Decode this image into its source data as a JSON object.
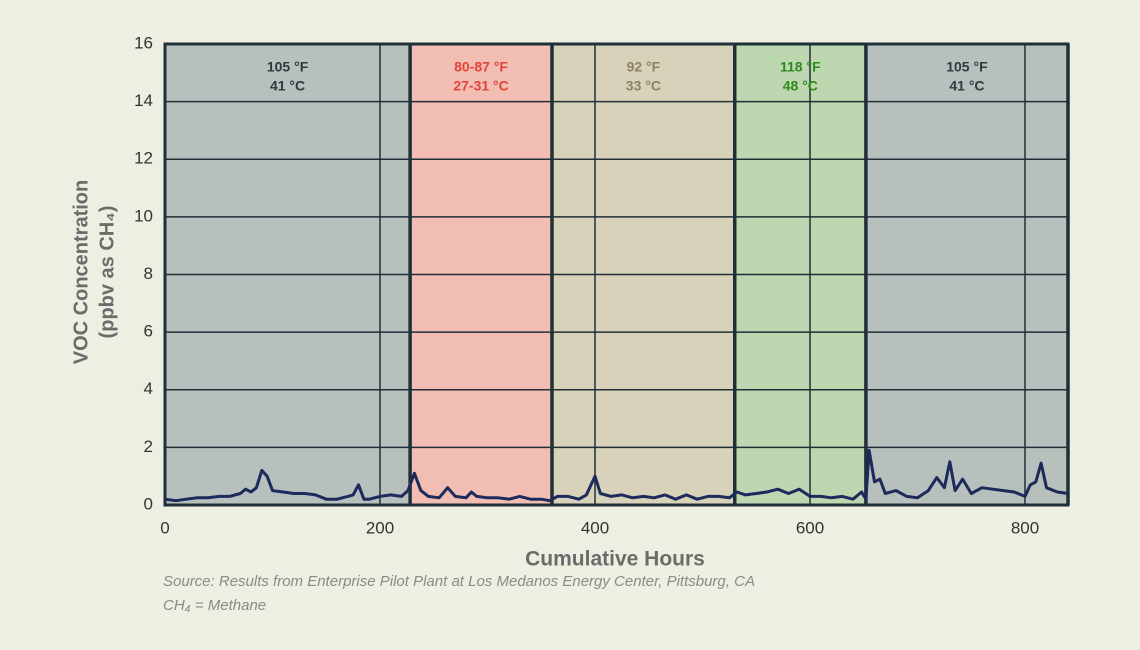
{
  "chart_data": {
    "type": "line",
    "ylabel": [
      "VOC Concentration",
      "(ppbv as CH₄)"
    ],
    "xlabel": "Cumulative Hours",
    "notes": [
      "Source: Results from Enterprise Pilot Plant at Los Medanos Energy Center, Pittsburg, CA",
      "CH₄ = Methane"
    ],
    "xlim": [
      0,
      840
    ],
    "xticks": [
      0,
      200,
      400,
      600,
      800
    ],
    "ylim": [
      0,
      16
    ],
    "yticks": [
      0,
      2,
      4,
      6,
      8,
      10,
      12,
      14,
      16
    ],
    "grid": true,
    "regions": [
      {
        "from": 0,
        "to": 228,
        "color": "#b8c0bd",
        "text_color": "#2d3a40",
        "labels": [
          "105 °F",
          "41 °C"
        ]
      },
      {
        "from": 228,
        "to": 360,
        "color": "#f2bdb2",
        "text_color": "#e0453a",
        "labels": [
          "80-87 °F",
          "27-31 °C"
        ]
      },
      {
        "from": 360,
        "to": 530,
        "color": "#d9d2ba",
        "text_color": "#8c8266",
        "labels": [
          "92 °F",
          "33 °C"
        ]
      },
      {
        "from": 530,
        "to": 652,
        "color": "#bdd8b1",
        "text_color": "#2e8a1e",
        "labels": [
          "118 °F",
          "48 °C"
        ]
      },
      {
        "from": 652,
        "to": 840,
        "color": "#b8c0bd",
        "text_color": "#2d3a40",
        "labels": [
          "105 °F",
          "41 °C"
        ]
      }
    ],
    "series": [
      {
        "color": "#1c2a5c",
        "x": [
          0,
          10,
          20,
          30,
          40,
          50,
          60,
          70,
          75,
          80,
          85,
          90,
          95,
          100,
          110,
          120,
          130,
          140,
          150,
          160,
          170,
          175,
          180,
          185,
          190,
          200,
          210,
          220,
          226,
          232,
          238,
          245,
          255,
          263,
          270,
          280,
          285,
          290,
          300,
          310,
          320,
          330,
          340,
          350,
          358,
          365,
          375,
          385,
          392,
          400,
          405,
          415,
          425,
          435,
          445,
          455,
          465,
          475,
          485,
          495,
          505,
          515,
          525,
          532,
          540,
          550,
          560,
          570,
          580,
          590,
          600,
          610,
          620,
          630,
          640,
          648,
          652,
          655,
          660,
          665,
          670,
          680,
          690,
          700,
          710,
          718,
          725,
          730,
          735,
          742,
          750,
          760,
          770,
          780,
          790,
          800,
          805,
          810,
          815,
          820,
          830,
          840
        ],
        "values": [
          0.2,
          0.15,
          0.2,
          0.25,
          0.25,
          0.3,
          0.3,
          0.4,
          0.55,
          0.45,
          0.6,
          1.2,
          1.0,
          0.5,
          0.45,
          0.4,
          0.4,
          0.35,
          0.2,
          0.2,
          0.3,
          0.35,
          0.7,
          0.2,
          0.2,
          0.3,
          0.35,
          0.3,
          0.5,
          1.1,
          0.5,
          0.3,
          0.25,
          0.6,
          0.3,
          0.25,
          0.45,
          0.3,
          0.25,
          0.25,
          0.2,
          0.3,
          0.2,
          0.2,
          0.15,
          0.3,
          0.3,
          0.2,
          0.35,
          1.0,
          0.4,
          0.3,
          0.35,
          0.25,
          0.3,
          0.25,
          0.35,
          0.2,
          0.35,
          0.2,
          0.3,
          0.3,
          0.25,
          0.45,
          0.35,
          0.4,
          0.45,
          0.55,
          0.4,
          0.55,
          0.3,
          0.3,
          0.25,
          0.3,
          0.2,
          0.45,
          0.2,
          1.9,
          0.8,
          0.9,
          0.4,
          0.5,
          0.3,
          0.25,
          0.5,
          0.95,
          0.6,
          1.5,
          0.5,
          0.9,
          0.4,
          0.6,
          0.55,
          0.5,
          0.45,
          0.3,
          0.7,
          0.8,
          1.45,
          0.6,
          0.45,
          0.4
        ]
      }
    ]
  }
}
